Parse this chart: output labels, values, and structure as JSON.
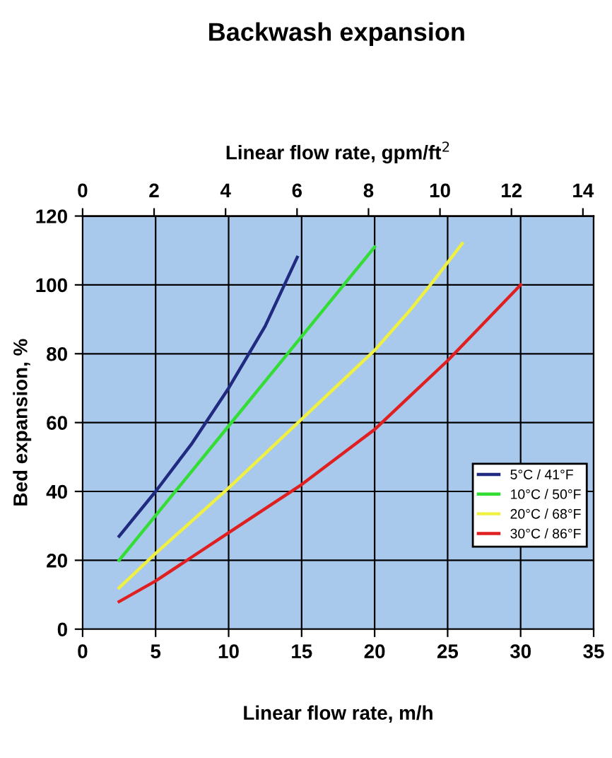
{
  "chart_data": {
    "type": "line",
    "title": "Backwash expansion",
    "xlabel": "Linear flow rate, m/h",
    "x2label": "Linear flow rate, gpm/ft$^{2}$",
    "ylabel": "Bed expansion, %",
    "xlim": [
      0,
      35
    ],
    "xticks": [
      0,
      5,
      10,
      15,
      20,
      25,
      30,
      35
    ],
    "x2lim": [
      0,
      14.3
    ],
    "x2ticks": [
      0,
      2,
      4,
      6,
      8,
      10,
      12,
      14
    ],
    "ylim": [
      0,
      120
    ],
    "yticks": [
      0,
      20,
      40,
      60,
      80,
      100,
      120
    ],
    "grid": true,
    "legend": "right",
    "marker": "none",
    "line_style": "solid",
    "series": [
      {
        "name": "5°C / 41°F",
        "color": "#1f2a80",
        "x": [
          2.5,
          5,
          7.5,
          10,
          12.5,
          14.7
        ],
        "values": [
          27,
          40,
          54,
          70,
          88,
          108
        ]
      },
      {
        "name": "10°C / 50°F",
        "color": "#33dd33",
        "x": [
          2.5,
          5,
          7.5,
          10,
          12.5,
          15,
          17.5,
          20
        ],
        "values": [
          20,
          33,
          46,
          59,
          72,
          85,
          98,
          111
        ]
      },
      {
        "name": "20°C / 68°F",
        "color": "#f0f040",
        "x": [
          2.5,
          5,
          10,
          15,
          20,
          22.5,
          24,
          26
        ],
        "values": [
          12,
          22,
          41,
          61,
          81,
          93,
          101,
          112
        ]
      },
      {
        "name": "30°C / 86°F",
        "color": "#e02020",
        "x": [
          2.5,
          5,
          7.5,
          10,
          15,
          20,
          22.5,
          25,
          27.5,
          30
        ],
        "values": [
          8,
          14,
          21,
          28,
          42,
          58,
          68,
          78,
          89,
          100
        ]
      }
    ]
  }
}
